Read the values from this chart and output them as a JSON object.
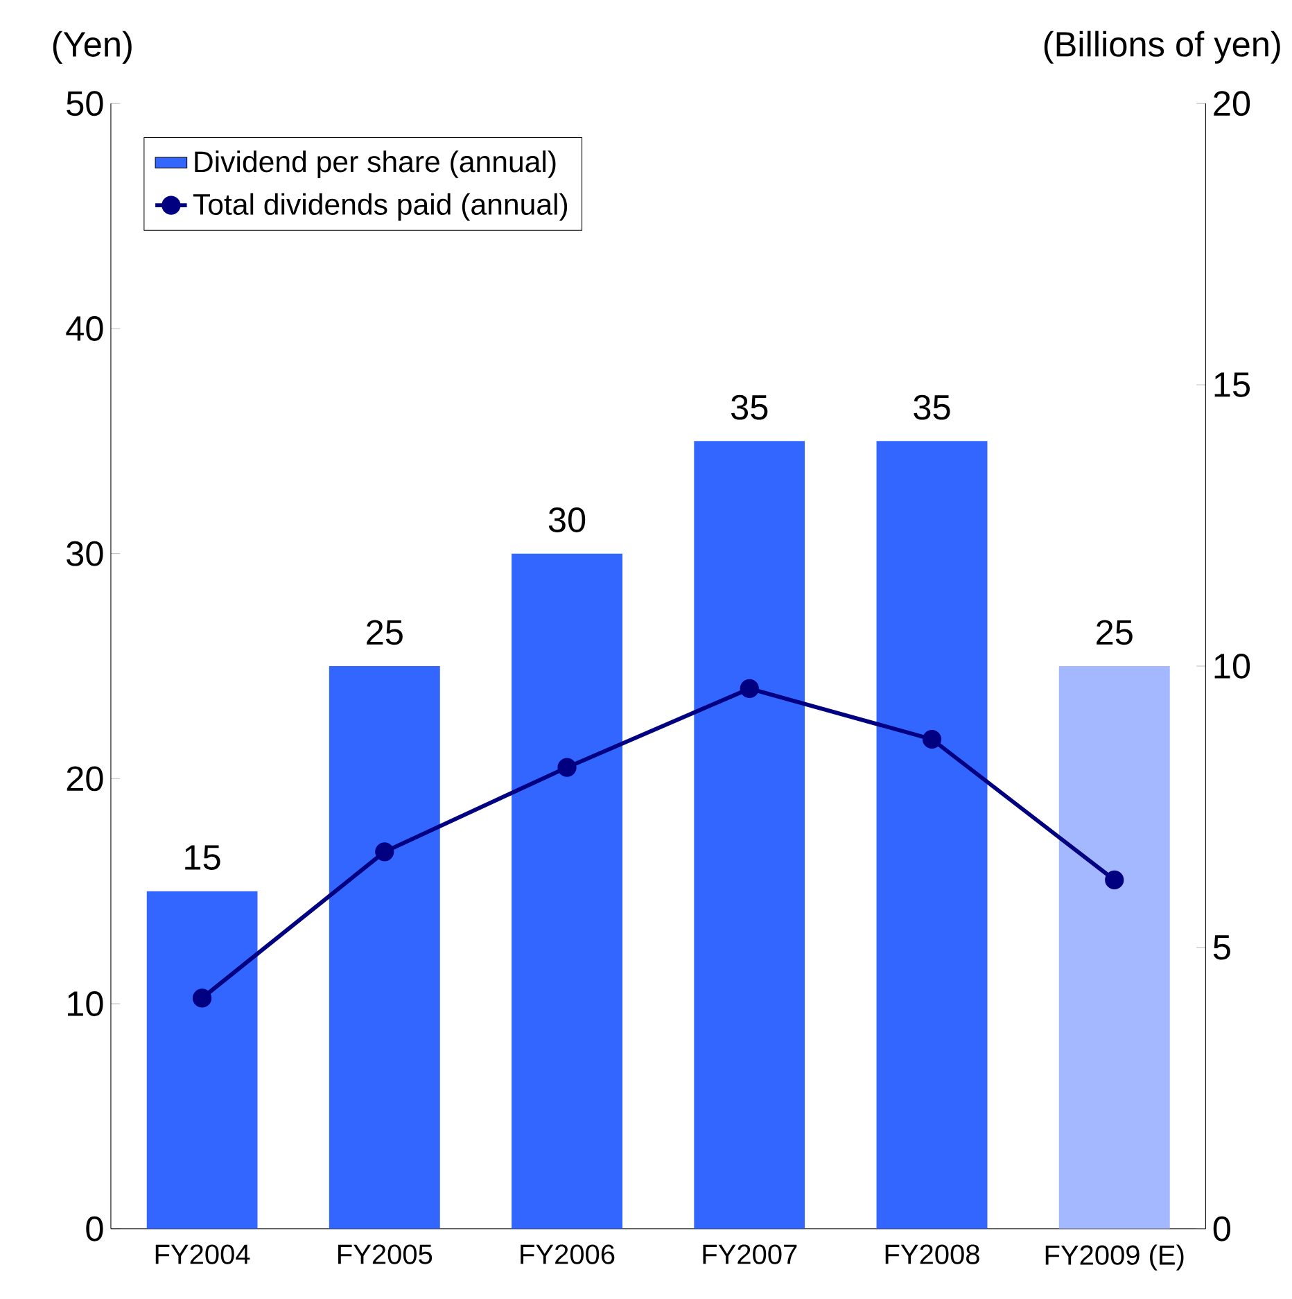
{
  "chart_data": {
    "type": "bar",
    "xlabel": null,
    "categories": [
      "FY2004",
      "FY2005",
      "FY2006",
      "FY2007",
      "FY2008",
      "FY2009 (E)"
    ],
    "ylabel": "(Yen)",
    "y2label": "(Billions of yen)",
    "ylim": [
      0,
      50
    ],
    "yticks": [
      0,
      10,
      20,
      30,
      40,
      50
    ],
    "y2lim": [
      0,
      20
    ],
    "y2ticks": [
      0,
      5,
      10,
      15,
      20
    ],
    "legend": "top left",
    "grid": false,
    "series": [
      {
        "name": "Dividend per share (annual)",
        "color": "#3366ff",
        "colors": [
          "#3366ff",
          "#3366ff",
          "#3366ff",
          "#3366ff",
          "#3366ff",
          "#a3b8ff"
        ],
        "values": [
          15,
          25,
          30,
          35,
          35,
          25
        ],
        "value_labels": [
          "15",
          "25",
          "30",
          "35",
          "35",
          "25"
        ]
      },
      {
        "name": "Total dividends paid  (annual)",
        "type": "line",
        "axis": "y2",
        "color": "#000080",
        "marker": "circle",
        "line_style": "solid",
        "values": [
          4.1,
          6.7,
          8.2,
          9.6,
          8.7,
          6.2
        ]
      }
    ]
  }
}
